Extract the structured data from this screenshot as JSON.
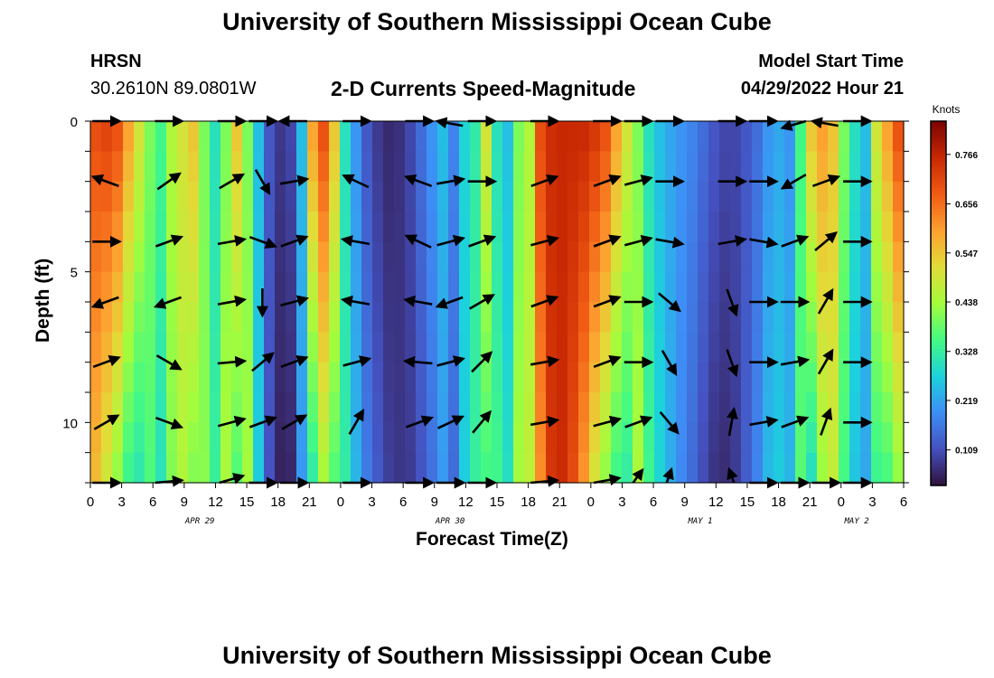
{
  "header": {
    "title": "University of Southern Mississippi Ocean Cube",
    "station": "HRSN",
    "coordinates": "30.2610N  89.0801W",
    "subtitle": "2-D Currents Speed-Magnitude",
    "model_start_label": "Model Start Time",
    "model_start_value": "04/29/2022 Hour 21"
  },
  "footer": {
    "title": "University of Southern Mississippi Ocean Cube"
  },
  "chart_data": {
    "type": "heatmap",
    "title": "2-D Currents Speed-Magnitude",
    "xlabel": "Forecast Time(Z)",
    "ylabel": "Depth (ft)",
    "x_range_hours": [
      0,
      78
    ],
    "x_tick_step_hours": 3,
    "x_tick_labels": [
      "0",
      "3",
      "6",
      "9",
      "12",
      "15",
      "18",
      "21",
      "0",
      "3",
      "6",
      "9",
      "12",
      "15",
      "18",
      "21",
      "0",
      "3",
      "6",
      "9",
      "12",
      "15",
      "18",
      "21",
      "0",
      "3",
      "6"
    ],
    "date_labels": [
      {
        "label": "APR 29",
        "hour": 10.5
      },
      {
        "label": "APR 30",
        "hour": 34.5
      },
      {
        "label": "MAY 1",
        "hour": 58.5
      },
      {
        "label": "MAY 2",
        "hour": 73.5
      }
    ],
    "y_range_ft": [
      0,
      12
    ],
    "y_tick_labels": [
      {
        "depth": 0,
        "label": "0"
      },
      {
        "depth": 5,
        "label": "5"
      },
      {
        "depth": 10,
        "label": "10"
      }
    ],
    "colorbar": {
      "unit": "Knots",
      "min": 0.03,
      "max": 0.84,
      "tick_values": [
        0.109,
        0.219,
        0.328,
        0.438,
        0.547,
        0.656,
        0.766
      ],
      "tick_labels": [
        "0.109",
        "0.219",
        "0.328",
        "0.438",
        "0.547",
        "0.656",
        "0.766"
      ]
    },
    "depth_rows_ft": [
      0.5,
      1.5,
      2.5,
      3.5,
      4.5,
      5.5,
      6.5,
      7.5,
      8.5,
      9.5,
      10.5,
      11.5
    ],
    "time_cols_hours_start": 0,
    "time_col_step_hours": 1,
    "speed_profile_by_hour": [
      0.7,
      0.72,
      0.7,
      0.6,
      0.5,
      0.4,
      0.35,
      0.45,
      0.5,
      0.55,
      0.4,
      0.3,
      0.4,
      0.55,
      0.4,
      0.25,
      0.12,
      0.08,
      0.1,
      0.25,
      0.6,
      0.7,
      0.55,
      0.3,
      0.2,
      0.12,
      0.08,
      0.06,
      0.07,
      0.1,
      0.15,
      0.2,
      0.25,
      0.18,
      0.28,
      0.32,
      0.5,
      0.3,
      0.25,
      0.4,
      0.45,
      0.7,
      0.75,
      0.76,
      0.76,
      0.76,
      0.74,
      0.7,
      0.6,
      0.5,
      0.4,
      0.3,
      0.25,
      0.22,
      0.2,
      0.18,
      0.15,
      0.12,
      0.1,
      0.1,
      0.12,
      0.15,
      0.2,
      0.22,
      0.2,
      0.35,
      0.55,
      0.6,
      0.55,
      0.4,
      0.3,
      0.25,
      0.5,
      0.6,
      0.7
    ],
    "vector_rows_ft": [
      0,
      2,
      4,
      6,
      8,
      10,
      12
    ],
    "vector_cols_hours": [
      1.5,
      7.5,
      13.5,
      16.5,
      19.5,
      25.5,
      31.5,
      34.5,
      37.5,
      43.5,
      49.5,
      52.5,
      55.5,
      61.5,
      64.5,
      67.5,
      70.5,
      73.5
    ],
    "vector_angles_deg": [
      [
        0,
        0,
        0,
        0,
        180,
        0,
        0,
        160,
        0,
        0,
        0,
        0,
        0,
        0,
        0,
        210,
        160,
        0
      ],
      [
        160,
        35,
        30,
        300,
        10,
        155,
        160,
        10,
        0,
        20,
        20,
        15,
        0,
        0,
        0,
        210,
        20,
        0
      ],
      [
        0,
        20,
        10,
        340,
        20,
        170,
        155,
        15,
        20,
        15,
        20,
        15,
        350,
        10,
        350,
        20,
        40,
        0
      ],
      [
        200,
        200,
        10,
        270,
        15,
        170,
        170,
        200,
        30,
        20,
        20,
        0,
        320,
        290,
        0,
        0,
        60,
        0
      ],
      [
        20,
        330,
        5,
        40,
        20,
        15,
        175,
        15,
        45,
        10,
        20,
        0,
        300,
        290,
        0,
        10,
        60,
        0
      ],
      [
        30,
        340,
        15,
        20,
        30,
        60,
        20,
        25,
        50,
        10,
        15,
        20,
        310,
        80,
        10,
        20,
        70,
        0
      ],
      [
        0,
        10,
        30,
        0,
        0,
        0,
        0,
        0,
        0,
        10,
        20,
        70,
        80,
        100,
        0,
        0,
        0,
        0
      ]
    ]
  }
}
